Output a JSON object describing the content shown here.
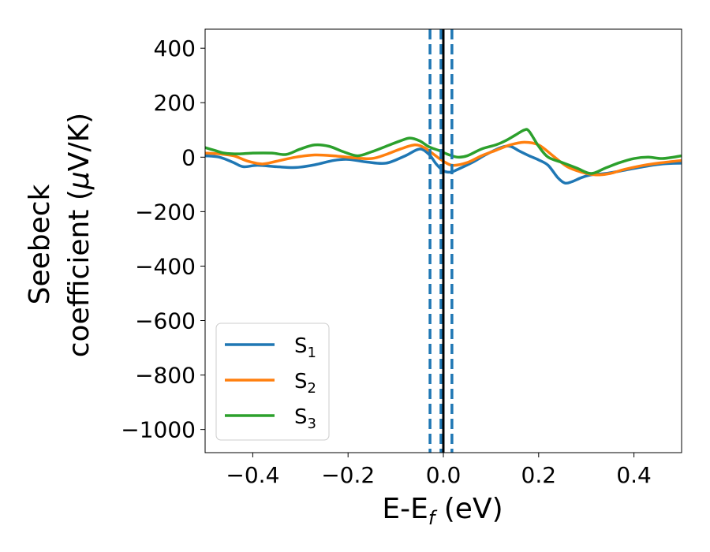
{
  "chart_data": {
    "type": "line",
    "xlabel": "E-E",
    "xlabel_sub": "f",
    "xlabel_unit": " (eV)",
    "ylabel_line1": "Seebeck",
    "ylabel_line2_pre": "coefficient  (",
    "ylabel_mu": "μ",
    "ylabel_line2_post": "V/K)",
    "xlim": [
      -0.5,
      0.5
    ],
    "ylim": [
      -1085,
      470
    ],
    "xticks": [
      -0.4,
      -0.2,
      0.0,
      0.2,
      0.4
    ],
    "xtick_labels": [
      "−0.4",
      "−0.2",
      "0.0",
      "0.2",
      "0.4"
    ],
    "yticks": [
      400,
      200,
      0,
      -200,
      -400,
      -600,
      -800,
      -1000
    ],
    "ytick_labels": [
      "400",
      "200",
      "0",
      "−200",
      "−400",
      "−600",
      "−800",
      "−1000"
    ],
    "grid": false,
    "legend_position": "bottom-left",
    "series": [
      {
        "name": "S",
        "name_sub": "1",
        "color": "#1f77b4",
        "x": [
          -0.5,
          -0.47,
          -0.44,
          -0.42,
          -0.39,
          -0.35,
          -0.31,
          -0.27,
          -0.23,
          -0.2,
          -0.16,
          -0.12,
          -0.08,
          -0.05,
          -0.03,
          -0.015,
          0.0,
          0.015,
          0.03,
          0.06,
          0.09,
          0.12,
          0.14,
          0.16,
          0.18,
          0.2,
          0.22,
          0.24,
          0.255,
          0.27,
          0.29,
          0.31,
          0.34,
          0.38,
          0.42,
          0.46,
          0.5
        ],
        "y": [
          5,
          0,
          -20,
          -35,
          -30,
          -35,
          -38,
          -28,
          -12,
          -8,
          -18,
          -22,
          5,
          30,
          10,
          -25,
          -50,
          -55,
          -45,
          -20,
          10,
          35,
          40,
          22,
          5,
          -10,
          -30,
          -75,
          -95,
          -90,
          -75,
          -65,
          -60,
          -48,
          -35,
          -25,
          -22
        ]
      },
      {
        "name": "S",
        "name_sub": "2",
        "color": "#ff7f0e",
        "x": [
          -0.5,
          -0.47,
          -0.44,
          -0.41,
          -0.38,
          -0.35,
          -0.31,
          -0.27,
          -0.23,
          -0.19,
          -0.15,
          -0.12,
          -0.09,
          -0.06,
          -0.04,
          -0.02,
          0.0,
          0.02,
          0.05,
          0.08,
          0.11,
          0.14,
          0.17,
          0.2,
          0.23,
          0.26,
          0.29,
          0.32,
          0.35,
          0.38,
          0.42,
          0.46,
          0.5
        ],
        "y": [
          15,
          12,
          5,
          -15,
          -25,
          -15,
          0,
          8,
          5,
          -2,
          -5,
          10,
          30,
          45,
          35,
          10,
          -15,
          -30,
          -20,
          5,
          25,
          45,
          55,
          45,
          5,
          -35,
          -55,
          -65,
          -60,
          -45,
          -30,
          -20,
          -12
        ]
      },
      {
        "name": "S",
        "name_sub": "3",
        "color": "#2ca02c",
        "x": [
          -0.5,
          -0.48,
          -0.46,
          -0.43,
          -0.4,
          -0.36,
          -0.33,
          -0.3,
          -0.27,
          -0.24,
          -0.21,
          -0.18,
          -0.15,
          -0.12,
          -0.09,
          -0.07,
          -0.05,
          -0.03,
          -0.01,
          0.01,
          0.03,
          0.05,
          0.08,
          0.11,
          0.13,
          0.15,
          0.17,
          0.18,
          0.2,
          0.22,
          0.25,
          0.28,
          0.31,
          0.34,
          0.37,
          0.4,
          0.43,
          0.46,
          0.5
        ],
        "y": [
          35,
          25,
          15,
          12,
          15,
          15,
          10,
          30,
          45,
          40,
          20,
          5,
          20,
          40,
          60,
          70,
          60,
          38,
          25,
          10,
          0,
          5,
          30,
          45,
          60,
          80,
          100,
          95,
          40,
          0,
          -20,
          -40,
          -60,
          -40,
          -20,
          -5,
          0,
          -5,
          5
        ]
      }
    ],
    "vlines": [
      {
        "x": -0.028,
        "color": "#1f77b4",
        "style": "dashed"
      },
      {
        "x": -0.005,
        "color": "#1f77b4",
        "style": "dashed"
      },
      {
        "x": 0.018,
        "color": "#1f77b4",
        "style": "dashed"
      },
      {
        "x": 0.0,
        "color": "#000000",
        "style": "solid"
      }
    ]
  }
}
